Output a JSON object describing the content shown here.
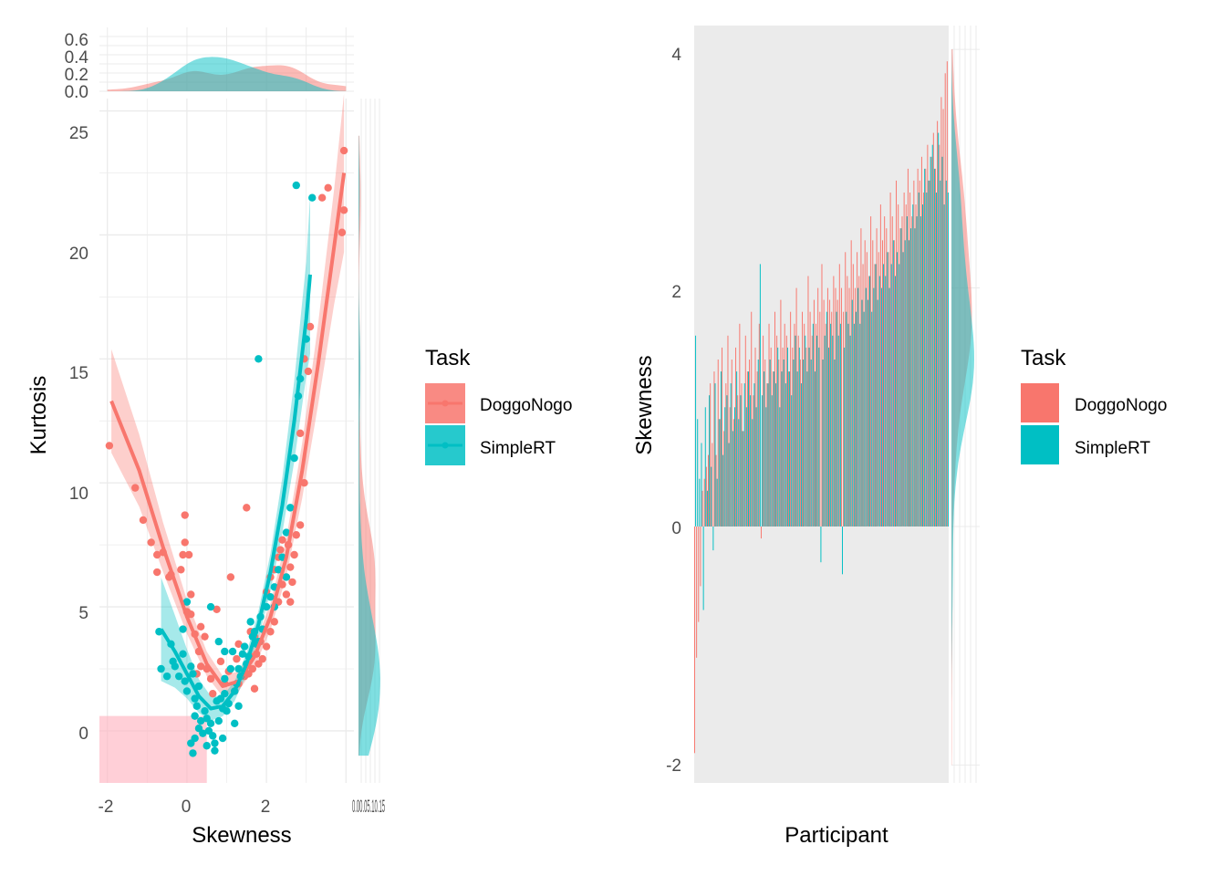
{
  "colors": {
    "DoggoNogo": "#F8766D",
    "SimpleRT": "#00BFC4",
    "grid": "#EBEBEB",
    "panel_bg": "#EBEBEB"
  },
  "chart_data": [
    {
      "type": "scatter",
      "xlabel": "Skewness",
      "ylabel": "Kurtosis",
      "xlim": [
        -2.2,
        4.2
      ],
      "ylim": [
        -2.1,
        25.5
      ],
      "x_ticks": [
        "-2",
        "0",
        "2"
      ],
      "y_ticks": [
        "0",
        "5",
        "10",
        "15",
        "20",
        "25"
      ],
      "top_density_ticks": [
        "0.0",
        "0.2",
        "0.4",
        "0.6"
      ],
      "right_density_tick_text": "0.00.05.10.15",
      "legend": {
        "title": "Task",
        "entries": [
          "DoggoNogo",
          "SimpleRT"
        ],
        "placement": "right"
      },
      "shaded_rect": {
        "x": [
          -2.2,
          0.5
        ],
        "y": [
          -2.1,
          0.6
        ]
      },
      "series": [
        {
          "name": "DoggoNogo",
          "points": [
            [
              -1.95,
              11.5
            ],
            [
              -1.3,
              9.8
            ],
            [
              -1.1,
              8.5
            ],
            [
              -0.9,
              7.6
            ],
            [
              -0.75,
              7.1
            ],
            [
              -0.75,
              6.4
            ],
            [
              -0.6,
              7.2
            ],
            [
              -0.45,
              6.2
            ],
            [
              -0.4,
              6.3
            ],
            [
              -0.05,
              7.6
            ],
            [
              -0.05,
              8.7
            ],
            [
              -0.1,
              7.1
            ],
            [
              -0.15,
              6.5
            ],
            [
              0.05,
              7.1
            ],
            [
              0.0,
              4.8
            ],
            [
              0.1,
              5.5
            ],
            [
              0.1,
              4.7
            ],
            [
              0.2,
              3.9
            ],
            [
              0.3,
              3.2
            ],
            [
              0.35,
              4.2
            ],
            [
              0.45,
              3.8
            ],
            [
              0.5,
              2.5
            ],
            [
              0.6,
              2.1
            ],
            [
              0.65,
              1.5
            ],
            [
              0.75,
              4.9
            ],
            [
              0.85,
              2.8
            ],
            [
              0.95,
              1.9
            ],
            [
              1.1,
              6.2
            ],
            [
              1.2,
              1.6
            ],
            [
              1.3,
              1.9
            ],
            [
              1.45,
              2.2
            ],
            [
              1.55,
              2.3
            ],
            [
              1.65,
              2.5
            ],
            [
              1.7,
              1.7
            ],
            [
              1.8,
              2.7
            ],
            [
              1.9,
              2.9
            ],
            [
              1.75,
              3.1
            ],
            [
              1.85,
              3.6
            ],
            [
              2.0,
              3.4
            ],
            [
              2.1,
              4.0
            ],
            [
              2.2,
              4.4
            ],
            [
              2.3,
              5.2
            ],
            [
              2.4,
              5.9
            ],
            [
              2.5,
              6.2
            ],
            [
              2.6,
              6.6
            ],
            [
              2.7,
              7.1
            ],
            [
              2.75,
              7.9
            ],
            [
              2.85,
              8.3
            ],
            [
              2.2,
              6.5
            ],
            [
              2.35,
              7.3
            ],
            [
              2.0,
              5.6
            ],
            [
              2.1,
              6.2
            ],
            [
              2.4,
              7.7
            ],
            [
              2.3,
              7.0
            ],
            [
              1.5,
              9.0
            ],
            [
              2.95,
              10.0
            ],
            [
              2.85,
              12.0
            ],
            [
              3.05,
              14.5
            ],
            [
              3.1,
              16.3
            ],
            [
              2.95,
              15.0
            ],
            [
              3.4,
              21.5
            ],
            [
              3.55,
              21.9
            ],
            [
              3.95,
              23.4
            ],
            [
              3.9,
              20.1
            ],
            [
              3.95,
              21.0
            ],
            [
              1.6,
              3.0
            ],
            [
              1.7,
              3.8
            ],
            [
              1.6,
              4.0
            ],
            [
              1.3,
              3.5
            ],
            [
              2.5,
              5.5
            ],
            [
              2.6,
              5.2
            ],
            [
              1.05,
              2.4
            ],
            [
              1.25,
              2.9
            ],
            [
              0.35,
              2.6
            ],
            [
              0.25,
              2.3
            ],
            [
              2.65,
              6.0
            ],
            [
              2.55,
              7.5
            ]
          ],
          "fit": [
            [
              -1.9,
              13.3
            ],
            [
              -1.2,
              10.5
            ],
            [
              -0.6,
              7.4
            ],
            [
              0.0,
              4.6
            ],
            [
              0.5,
              2.7
            ],
            [
              0.9,
              1.8
            ],
            [
              1.3,
              2.0
            ],
            [
              1.7,
              3.0
            ],
            [
              2.1,
              4.6
            ],
            [
              2.5,
              7.0
            ],
            [
              2.9,
              10.5
            ],
            [
              3.3,
              14.8
            ],
            [
              3.7,
              19.5
            ],
            [
              3.95,
              22.5
            ]
          ]
        },
        {
          "name": "SimpleRT",
          "points": [
            [
              -0.65,
              2.5
            ],
            [
              -0.5,
              2.2
            ],
            [
              -0.4,
              3.5
            ],
            [
              -0.35,
              2.8
            ],
            [
              -0.3,
              2.6
            ],
            [
              -0.2,
              2.2
            ],
            [
              -0.1,
              3.1
            ],
            [
              -0.05,
              2.0
            ],
            [
              0.0,
              1.6
            ],
            [
              0.1,
              2.6
            ],
            [
              0.15,
              2.3
            ],
            [
              0.2,
              1.3
            ],
            [
              0.25,
              1.0
            ],
            [
              0.3,
              1.8
            ],
            [
              0.35,
              0.4
            ],
            [
              0.45,
              0.8
            ],
            [
              0.5,
              -0.6
            ],
            [
              0.55,
              0.0
            ],
            [
              0.6,
              0.3
            ],
            [
              0.65,
              -0.2
            ],
            [
              0.7,
              -0.5
            ],
            [
              0.75,
              1.2
            ],
            [
              0.8,
              0.4
            ],
            [
              0.9,
              0.9
            ],
            [
              0.95,
              1.5
            ],
            [
              1.0,
              0.8
            ],
            [
              1.05,
              1.1
            ],
            [
              1.1,
              2.5
            ],
            [
              1.15,
              3.2
            ],
            [
              1.2,
              1.6
            ],
            [
              1.25,
              1.9
            ],
            [
              1.3,
              2.5
            ],
            [
              1.35,
              2.2
            ],
            [
              1.4,
              3.1
            ],
            [
              1.45,
              3.4
            ],
            [
              1.5,
              2.7
            ],
            [
              1.55,
              3.0
            ],
            [
              1.6,
              4.4
            ],
            [
              1.65,
              3.8
            ],
            [
              1.7,
              4.0
            ],
            [
              1.75,
              3.5
            ],
            [
              1.8,
              3.6
            ],
            [
              1.85,
              4.6
            ],
            [
              1.9,
              4.1
            ],
            [
              2.0,
              5.0
            ],
            [
              2.1,
              5.4
            ],
            [
              2.2,
              5.8
            ],
            [
              2.3,
              6.5
            ],
            [
              2.4,
              7.0
            ],
            [
              2.5,
              8.0
            ],
            [
              2.6,
              9.0
            ],
            [
              2.7,
              11.0
            ],
            [
              2.8,
              13.5
            ],
            [
              2.85,
              14.2
            ],
            [
              3.0,
              15.8
            ],
            [
              2.75,
              22.0
            ],
            [
              3.15,
              21.5
            ],
            [
              1.8,
              15.0
            ],
            [
              0.0,
              5.2
            ],
            [
              -0.1,
              4.1
            ],
            [
              0.6,
              5.0
            ],
            [
              0.8,
              3.6
            ],
            [
              0.95,
              3.2
            ],
            [
              0.2,
              -0.3
            ],
            [
              0.1,
              -0.5
            ],
            [
              0.4,
              -0.1
            ],
            [
              0.5,
              0.5
            ],
            [
              0.3,
              0.1
            ],
            [
              0.2,
              0.6
            ],
            [
              0.15,
              -0.9
            ],
            [
              -0.7,
              4.0
            ],
            [
              0.7,
              -0.8
            ],
            [
              0.9,
              -0.3
            ],
            [
              1.2,
              0.3
            ],
            [
              1.3,
              1.0
            ],
            [
              2.5,
              6.2
            ],
            [
              2.2,
              5.0
            ],
            [
              0.95,
              2.1
            ],
            [
              0.85,
              1.3
            ]
          ],
          "fit": [
            [
              -0.65,
              4.1
            ],
            [
              -0.3,
              3.2
            ],
            [
              0.0,
              2.3
            ],
            [
              0.3,
              1.4
            ],
            [
              0.6,
              0.9
            ],
            [
              0.9,
              1.0
            ],
            [
              1.2,
              1.6
            ],
            [
              1.5,
              2.7
            ],
            [
              1.8,
              4.3
            ],
            [
              2.1,
              6.4
            ],
            [
              2.4,
              9.1
            ],
            [
              2.7,
              12.5
            ],
            [
              3.0,
              16.6
            ],
            [
              3.1,
              18.4
            ]
          ]
        }
      ]
    },
    {
      "type": "bar",
      "xlabel": "Participant",
      "ylabel": "Skewness",
      "ylim": [
        -2.15,
        4.2
      ],
      "y_ticks": [
        "-2",
        "0",
        "2",
        "4"
      ],
      "legend": {
        "title": "Task",
        "entries": [
          "DoggoNogo",
          "SimpleRT"
        ],
        "placement": "right"
      },
      "n_participants": 130,
      "series": [
        {
          "name": "DoggoNogo",
          "values": [
            -1.9,
            -1.1,
            -0.8,
            -0.5,
            0.3,
            0.4,
            0.5,
            0.6,
            1.2,
            0.7,
            1.3,
            0.6,
            1.4,
            0.9,
            1.5,
            0.8,
            1.2,
            1.6,
            1.0,
            1.4,
            0.9,
            1.5,
            1.1,
            1.7,
            1.2,
            0.8,
            1.6,
            1.3,
            1.4,
            1.8,
            1.1,
            1.5,
            1.3,
            1.7,
            -0.1,
            1.6,
            1.4,
            1.2,
            1.7,
            1.5,
            1.3,
            1.8,
            1.6,
            1.4,
            1.9,
            1.5,
            1.7,
            1.6,
            1.3,
            1.8,
            1.5,
            1.7,
            2.0,
            1.6,
            1.4,
            1.8,
            1.7,
            1.5,
            2.1,
            1.8,
            1.6,
            1.9,
            1.7,
            2.0,
            1.8,
            2.2,
            1.9,
            1.7,
            2.0,
            1.9,
            1.8,
            2.1,
            2.0,
            1.9,
            2.2,
            2.0,
            1.8,
            2.3,
            2.1,
            2.0,
            2.4,
            2.2,
            2.0,
            2.3,
            2.1,
            2.5,
            2.2,
            2.4,
            2.3,
            2.1,
            2.6,
            2.4,
            2.2,
            2.5,
            2.3,
            2.7,
            2.4,
            2.6,
            2.5,
            2.3,
            2.8,
            2.6,
            2.4,
            2.9,
            2.7,
            2.5,
            2.6,
            2.8,
            2.7,
            3.0,
            2.8,
            2.6,
            2.9,
            2.7,
            3.0,
            2.9,
            3.1,
            2.8,
            3.0,
            3.2,
            2.9,
            3.1,
            3.3,
            3.0,
            3.4,
            3.2,
            3.6,
            3.5,
            3.8,
            3.9
          ]
        },
        {
          "name": "SimpleRT",
          "values": [
            1.6,
            0.9,
            0.4,
            0.7,
            -0.7,
            1.0,
            0.3,
            1.1,
            0.5,
            -0.2,
            1.2,
            0.4,
            0.9,
            1.3,
            0.6,
            1.0,
            1.1,
            0.7,
            1.2,
            0.8,
            1.0,
            1.3,
            0.9,
            1.1,
            0.8,
            1.2,
            1.0,
            1.3,
            1.1,
            0.9,
            1.2,
            1.0,
            1.4,
            2.2,
            1.1,
            1.3,
            1.0,
            1.2,
            1.4,
            1.1,
            1.3,
            1.2,
            1.5,
            1.0,
            1.3,
            1.4,
            1.2,
            1.5,
            1.3,
            1.1,
            1.4,
            1.6,
            1.3,
            1.5,
            1.2,
            1.4,
            1.6,
            1.3,
            1.5,
            1.4,
            1.7,
            1.3,
            1.6,
            1.5,
            -0.3,
            1.4,
            1.6,
            1.8,
            1.5,
            1.7,
            1.6,
            1.4,
            1.8,
            1.6,
            1.7,
            -0.4,
            1.5,
            1.8,
            1.7,
            1.6,
            1.9,
            1.7,
            1.8,
            2.0,
            1.7,
            1.9,
            1.8,
            2.0,
            1.9,
            2.1,
            1.8,
            2.0,
            2.2,
            1.9,
            2.1,
            2.0,
            2.2,
            2.1,
            2.3,
            2.0,
            2.2,
            2.4,
            2.1,
            2.3,
            2.2,
            2.5,
            2.3,
            2.4,
            2.6,
            2.4,
            2.5,
            2.7,
            2.5,
            2.6,
            2.8,
            2.6,
            2.7,
            3.0,
            2.8,
            2.9,
            3.1,
            3.2,
            3.0,
            2.8,
            3.3,
            2.9,
            3.1,
            2.7,
            2.9,
            2.8
          ]
        }
      ]
    }
  ]
}
